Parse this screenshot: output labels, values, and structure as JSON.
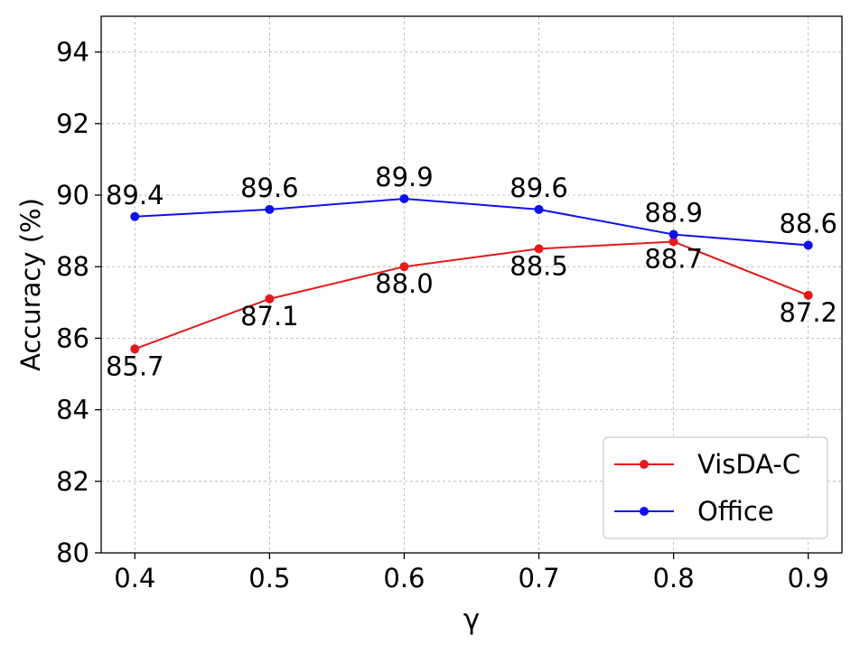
{
  "chart_data": {
    "type": "line",
    "title": "",
    "xlabel": "γ",
    "ylabel": "Accuracy (%)",
    "x": [
      0.4,
      0.5,
      0.6,
      0.7,
      0.8,
      0.9
    ],
    "x_tick_labels": [
      "0.4",
      "0.5",
      "0.6",
      "0.7",
      "0.8",
      "0.9"
    ],
    "xlim": [
      0.375,
      0.925
    ],
    "ylim": [
      80,
      95
    ],
    "y_ticks": [
      80,
      82,
      84,
      86,
      88,
      90,
      92,
      94
    ],
    "y_tick_labels": [
      "80",
      "82",
      "84",
      "86",
      "88",
      "90",
      "92",
      "94"
    ],
    "grid": true,
    "legend_position": "bottom-right",
    "series": [
      {
        "name": "VisDA-C",
        "color": "#e41a1c",
        "values": [
          85.7,
          87.1,
          88.0,
          88.5,
          88.7,
          87.2
        ],
        "labels": [
          "85.7",
          "87.1",
          "88.0",
          "88.5",
          "88.7",
          "87.2"
        ],
        "label_position": "below"
      },
      {
        "name": "Office",
        "color": "#1010ee",
        "values": [
          89.4,
          89.6,
          89.9,
          89.6,
          88.9,
          88.6
        ],
        "labels": [
          "89.4",
          "89.6",
          "89.9",
          "89.6",
          "88.9",
          "88.6"
        ],
        "label_position": "above"
      }
    ]
  }
}
